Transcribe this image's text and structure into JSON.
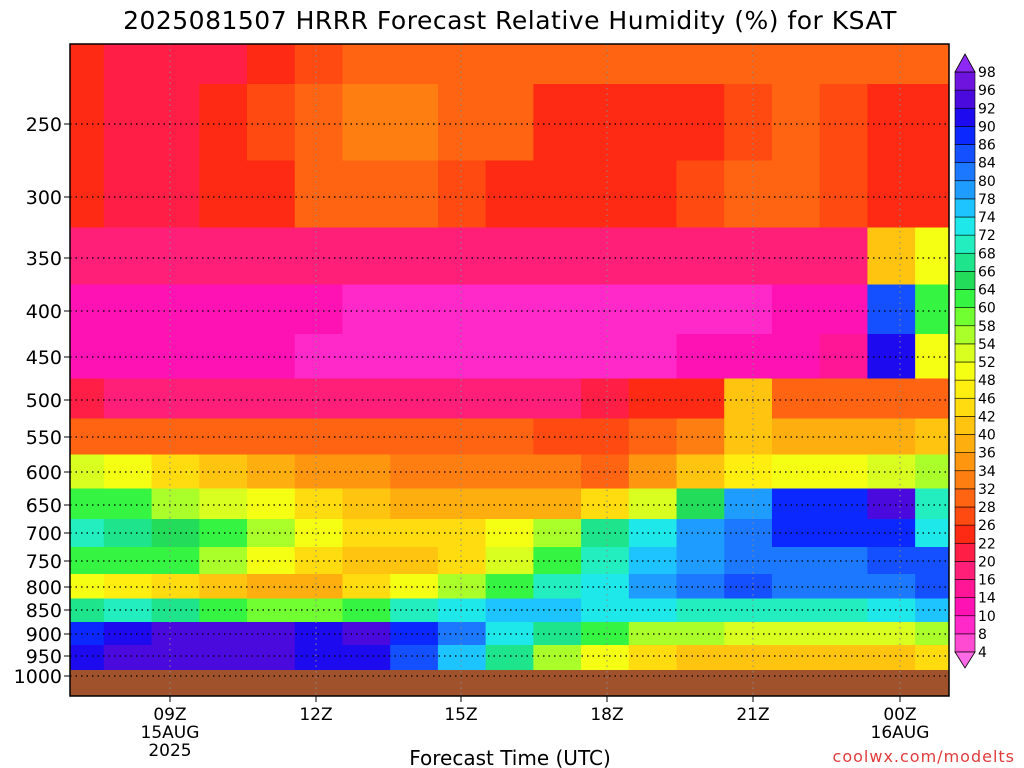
{
  "chart_data": {
    "type": "heatmap",
    "title": "2025081507 HRRR Forecast Relative Humidity (%) for KSAT",
    "xlabel": "Forecast Time (UTC)",
    "ylabel": "",
    "y_scale": "pressure (hPa), decreasing upward",
    "x_ticks": [
      {
        "label": "09Z",
        "sub": [
          "15AUG",
          "2025"
        ]
      },
      {
        "label": "12Z",
        "sub": []
      },
      {
        "label": "15Z",
        "sub": []
      },
      {
        "label": "18Z",
        "sub": []
      },
      {
        "label": "21Z",
        "sub": []
      },
      {
        "label": "00Z",
        "sub": [
          "16AUG"
        ]
      }
    ],
    "x_values": [
      "07Z",
      "08Z",
      "09Z",
      "10Z",
      "11Z",
      "12Z",
      "13Z",
      "14Z",
      "15Z",
      "16Z",
      "17Z",
      "18Z",
      "19Z",
      "20Z",
      "21Z",
      "22Z",
      "23Z",
      "00Z",
      "01Z"
    ],
    "y_values": [
      200,
      250,
      300,
      350,
      400,
      450,
      500,
      550,
      600,
      650,
      700,
      750,
      800,
      850,
      900,
      950
    ],
    "y_ticks": [
      250,
      300,
      350,
      400,
      450,
      500,
      550,
      600,
      650,
      700,
      750,
      800,
      850,
      900,
      950,
      1000
    ],
    "ylim": [
      1000,
      200
    ],
    "grid": true,
    "values": [
      [
        22,
        20,
        20,
        20,
        22,
        26,
        28,
        30,
        30,
        28,
        28,
        28,
        28,
        28,
        28,
        28,
        28,
        28,
        28
      ],
      [
        22,
        20,
        20,
        22,
        26,
        30,
        32,
        32,
        30,
        28,
        24,
        24,
        24,
        24,
        26,
        28,
        26,
        22,
        24
      ],
      [
        22,
        20,
        20,
        22,
        24,
        28,
        28,
        28,
        26,
        24,
        22,
        22,
        24,
        26,
        28,
        28,
        26,
        22,
        22
      ],
      [
        18,
        16,
        16,
        16,
        16,
        16,
        16,
        16,
        16,
        16,
        16,
        16,
        16,
        16,
        16,
        16,
        16,
        40,
        50
      ],
      [
        12,
        10,
        10,
        10,
        10,
        10,
        8,
        8,
        8,
        8,
        8,
        8,
        8,
        8,
        8,
        10,
        10,
        84,
        60
      ],
      [
        12,
        10,
        10,
        10,
        10,
        8,
        8,
        8,
        8,
        8,
        8,
        8,
        8,
        10,
        10,
        12,
        14,
        90,
        50
      ],
      [
        20,
        18,
        18,
        18,
        18,
        18,
        18,
        18,
        18,
        18,
        18,
        20,
        22,
        24,
        40,
        30,
        30,
        30,
        30
      ],
      [
        30,
        28,
        28,
        28,
        28,
        30,
        30,
        30,
        30,
        28,
        26,
        26,
        28,
        32,
        40,
        38,
        36,
        38,
        40
      ],
      [
        52,
        48,
        44,
        40,
        38,
        34,
        34,
        32,
        32,
        32,
        32,
        30,
        34,
        40,
        46,
        48,
        50,
        52,
        54
      ],
      [
        62,
        60,
        56,
        52,
        48,
        44,
        40,
        36,
        36,
        36,
        38,
        42,
        52,
        64,
        78,
        86,
        88,
        92,
        70
      ],
      [
        68,
        66,
        64,
        60,
        56,
        48,
        44,
        42,
        44,
        48,
        56,
        66,
        72,
        78,
        82,
        86,
        88,
        88,
        72
      ],
      [
        62,
        60,
        60,
        56,
        50,
        44,
        40,
        40,
        44,
        52,
        62,
        70,
        74,
        78,
        80,
        82,
        82,
        84,
        84
      ],
      [
        48,
        46,
        44,
        40,
        36,
        38,
        42,
        50,
        56,
        62,
        68,
        72,
        78,
        82,
        84,
        82,
        80,
        82,
        84
      ],
      [
        66,
        70,
        66,
        62,
        58,
        58,
        62,
        68,
        72,
        76,
        74,
        72,
        72,
        70,
        70,
        70,
        70,
        72,
        74
      ],
      [
        86,
        90,
        92,
        94,
        92,
        90,
        92,
        86,
        80,
        72,
        66,
        60,
        56,
        54,
        52,
        52,
        52,
        52,
        54
      ],
      [
        90,
        92,
        94,
        94,
        92,
        90,
        90,
        84,
        74,
        66,
        56,
        48,
        44,
        40,
        40,
        40,
        40,
        40,
        42
      ]
    ],
    "colorbar": {
      "levels": [
        4,
        8,
        10,
        14,
        16,
        20,
        22,
        26,
        28,
        32,
        34,
        36,
        40,
        42,
        46,
        48,
        52,
        54,
        58,
        60,
        64,
        66,
        68,
        72,
        74,
        78,
        80,
        84,
        86,
        90,
        92,
        96,
        98
      ],
      "colors": [
        "#ff4ad2",
        "#ff28c8",
        "#ff12b4",
        "#ff1696",
        "#ff1e78",
        "#ff1e46",
        "#ff2a14",
        "#ff4a12",
        "#ff6412",
        "#ff7e12",
        "#ff9610",
        "#ffae10",
        "#ffc410",
        "#ffdc10",
        "#ffee10",
        "#f4ff14",
        "#d8ff20",
        "#aaff2a",
        "#72ff32",
        "#36f442",
        "#22dc5a",
        "#1ee48c",
        "#22eec0",
        "#1ee8ea",
        "#1ec4ff",
        "#1e9cff",
        "#1c78ff",
        "#1450ff",
        "#0a28ff",
        "#1e0aee",
        "#4a0ade",
        "#6e14de",
        "#8e28f4"
      ]
    },
    "ground_color": "#a0522d",
    "credit": "coolwx.com/modelts"
  }
}
